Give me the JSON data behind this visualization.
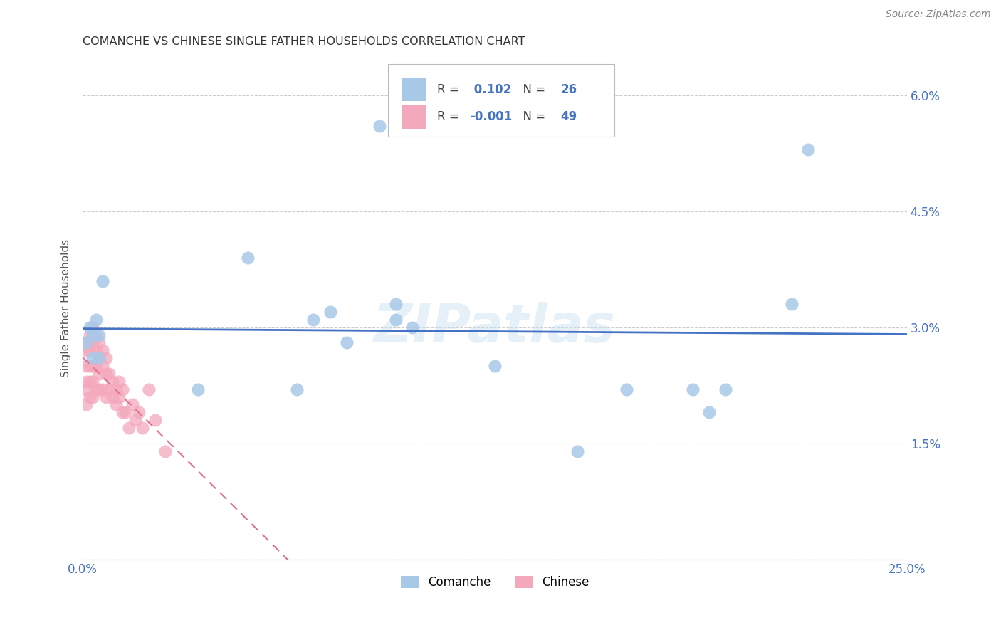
{
  "title": "COMANCHE VS CHINESE SINGLE FATHER HOUSEHOLDS CORRELATION CHART",
  "source": "Source: ZipAtlas.com",
  "ylabel": "Single Father Households",
  "xlim": [
    0,
    0.25
  ],
  "ylim": [
    0,
    0.065
  ],
  "ytick_positions": [
    0,
    0.015,
    0.03,
    0.045,
    0.06
  ],
  "ytick_labels": [
    "",
    "1.5%",
    "3.0%",
    "4.5%",
    "6.0%"
  ],
  "xtick_positions": [
    0,
    0.05,
    0.1,
    0.15,
    0.2,
    0.25
  ],
  "xtick_labels": [
    "0.0%",
    "",
    "",
    "",
    "",
    "25.0%"
  ],
  "comanche_R": 0.102,
  "comanche_N": 26,
  "chinese_R": -0.001,
  "chinese_N": 49,
  "comanche_color": "#a8c8e8",
  "chinese_color": "#f4a8bb",
  "comanche_line_color": "#4472c4",
  "chinese_line_color": "#e07090",
  "watermark": "ZIPatlas",
  "comanche_x": [
    0.001,
    0.002,
    0.003,
    0.003,
    0.004,
    0.005,
    0.005,
    0.006,
    0.035,
    0.05,
    0.065,
    0.07,
    0.075,
    0.08,
    0.09,
    0.095,
    0.095,
    0.1,
    0.125,
    0.15,
    0.165,
    0.185,
    0.19,
    0.195,
    0.215,
    0.22
  ],
  "comanche_y": [
    0.028,
    0.03,
    0.026,
    0.029,
    0.031,
    0.026,
    0.029,
    0.036,
    0.022,
    0.039,
    0.022,
    0.031,
    0.032,
    0.028,
    0.056,
    0.033,
    0.031,
    0.03,
    0.025,
    0.014,
    0.022,
    0.022,
    0.019,
    0.022,
    0.033,
    0.053
  ],
  "chinese_x": [
    0.001,
    0.001,
    0.001,
    0.001,
    0.001,
    0.001,
    0.002,
    0.002,
    0.002,
    0.002,
    0.002,
    0.003,
    0.003,
    0.003,
    0.003,
    0.003,
    0.004,
    0.004,
    0.004,
    0.004,
    0.005,
    0.005,
    0.005,
    0.005,
    0.006,
    0.006,
    0.006,
    0.007,
    0.007,
    0.007,
    0.008,
    0.008,
    0.009,
    0.009,
    0.01,
    0.01,
    0.011,
    0.011,
    0.012,
    0.012,
    0.013,
    0.014,
    0.015,
    0.016,
    0.017,
    0.018,
    0.02,
    0.022,
    0.025
  ],
  "chinese_y": [
    0.028,
    0.027,
    0.025,
    0.023,
    0.022,
    0.02,
    0.029,
    0.027,
    0.025,
    0.023,
    0.021,
    0.03,
    0.028,
    0.025,
    0.023,
    0.021,
    0.029,
    0.027,
    0.025,
    0.022,
    0.028,
    0.026,
    0.024,
    0.022,
    0.027,
    0.025,
    0.022,
    0.026,
    0.024,
    0.021,
    0.024,
    0.022,
    0.023,
    0.021,
    0.022,
    0.02,
    0.023,
    0.021,
    0.022,
    0.019,
    0.019,
    0.017,
    0.02,
    0.018,
    0.019,
    0.017,
    0.022,
    0.018,
    0.014
  ],
  "grid_color": "#cccccc",
  "background_color": "#ffffff",
  "tick_color": "#4472c4",
  "label_color": "#555555",
  "title_color": "#333333"
}
